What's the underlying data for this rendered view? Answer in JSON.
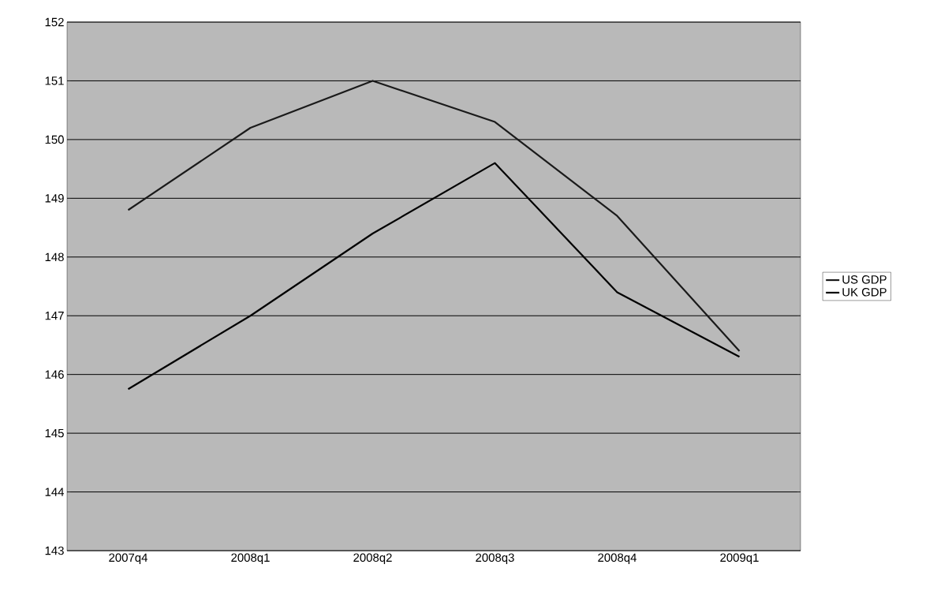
{
  "chart_data": {
    "type": "line",
    "categories": [
      "2007q4",
      "2008q1",
      "2008q2",
      "2008q3",
      "2008q4",
      "2009q1"
    ],
    "series": [
      {
        "name": "US GDP",
        "color": "#1a1a1a",
        "values": [
          148.8,
          150.2,
          151.0,
          150.3,
          148.7,
          146.4
        ]
      },
      {
        "name": "UK GDP",
        "color": "#000000",
        "values": [
          145.75,
          147.0,
          148.4,
          149.6,
          147.4,
          146.3
        ]
      }
    ],
    "ylim": [
      143,
      152
    ],
    "yticks": [
      143,
      144,
      145,
      146,
      147,
      148,
      149,
      150,
      151,
      152
    ],
    "grid": "y",
    "legend": "right",
    "marker": "none",
    "line_style": "solid"
  }
}
